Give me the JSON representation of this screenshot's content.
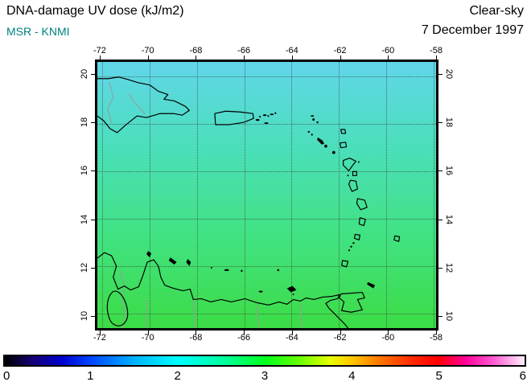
{
  "header": {
    "title": "DNA-damage UV dose (kJ/m2)",
    "source": "MSR - KNMI",
    "source_color": "#008080",
    "condition": "Clear-sky",
    "date": "7 December 1997"
  },
  "chart_data": {
    "type": "heatmap",
    "title": "DNA-damage UV dose (kJ/m2)",
    "condition": "Clear-sky",
    "date": "7 December 1997",
    "source": "MSR - KNMI",
    "units": "kJ/m2",
    "lon_range": [
      -72.2,
      -57.9
    ],
    "lat_range": [
      9.4,
      20.6
    ],
    "lon_ticks": [
      -72,
      -70,
      -68,
      -66,
      -64,
      -62,
      -60,
      -58
    ],
    "lat_ticks": [
      20,
      18,
      16,
      14,
      12,
      10
    ],
    "grid": true,
    "frame_color": "#000000",
    "grid_color": "#3c3c3c",
    "field": {
      "description": "Clear-sky DNA-damage UV dose over the Caribbean; smooth zonal bands increasing from north (cyan, ~2.1) to south (green, ~3.0)",
      "values_by_lat": [
        {
          "lat": 20,
          "dose_kj_m2": 2.1
        },
        {
          "lat": 18,
          "dose_kj_m2": 2.25
        },
        {
          "lat": 16,
          "dose_kj_m2": 2.45
        },
        {
          "lat": 14,
          "dose_kj_m2": 2.6
        },
        {
          "lat": 12,
          "dose_kj_m2": 2.75
        },
        {
          "lat": 10,
          "dose_kj_m2": 2.95
        }
      ],
      "gradient_stops": [
        {
          "pos": 0,
          "color": "#61D6EA"
        },
        {
          "pos": 0.33,
          "color": "#4ADFB9"
        },
        {
          "pos": 0.66,
          "color": "#41E281"
        },
        {
          "pos": 1,
          "color": "#3CDC45"
        }
      ]
    },
    "colorbar": {
      "min": 0,
      "max": 6,
      "ticks": [
        0,
        1,
        2,
        3,
        4,
        5,
        6
      ],
      "orientation": "horizontal",
      "stops": [
        {
          "pos": 0,
          "color": "#000000"
        },
        {
          "pos": 0.05,
          "color": "#14006e"
        },
        {
          "pos": 0.11,
          "color": "#0000d2"
        },
        {
          "pos": 0.167,
          "color": "#0046ff"
        },
        {
          "pos": 0.25,
          "color": "#00b4ff"
        },
        {
          "pos": 0.333,
          "color": "#00ffff"
        },
        {
          "pos": 0.42,
          "color": "#00ffa0"
        },
        {
          "pos": 0.5,
          "color": "#00ff1e"
        },
        {
          "pos": 0.565,
          "color": "#64ff00"
        },
        {
          "pos": 0.625,
          "color": "#e6ff00"
        },
        {
          "pos": 0.667,
          "color": "#ffc800"
        },
        {
          "pos": 0.72,
          "color": "#ff7800"
        },
        {
          "pos": 0.78,
          "color": "#ff2d00"
        },
        {
          "pos": 0.833,
          "color": "#ff0000"
        },
        {
          "pos": 0.885,
          "color": "#ff0096"
        },
        {
          "pos": 0.94,
          "color": "#ff5ad2"
        },
        {
          "pos": 1,
          "color": "#ffeefb"
        }
      ]
    }
  }
}
